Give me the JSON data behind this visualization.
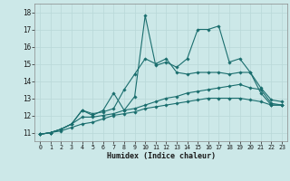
{
  "xlabel": "Humidex (Indice chaleur)",
  "bg_color": "#cce8e8",
  "line_color": "#1a6e6e",
  "grid_color": "#b8d8d8",
  "xlim": [
    -0.5,
    23.5
  ],
  "ylim": [
    10.5,
    18.5
  ],
  "xticks": [
    0,
    1,
    2,
    3,
    4,
    5,
    6,
    7,
    8,
    9,
    10,
    11,
    12,
    13,
    14,
    15,
    16,
    17,
    18,
    19,
    20,
    21,
    22,
    23
  ],
  "yticks": [
    11,
    12,
    13,
    14,
    15,
    16,
    17,
    18
  ],
  "series": [
    {
      "x": [
        0,
        1,
        2,
        3,
        4,
        5,
        6,
        7,
        8,
        9,
        10,
        11,
        12,
        13,
        14,
        15,
        16,
        17,
        18,
        19,
        20,
        21,
        22,
        23
      ],
      "y": [
        10.9,
        11.0,
        11.2,
        11.5,
        12.3,
        12.0,
        12.3,
        13.3,
        12.3,
        13.1,
        17.8,
        14.9,
        15.1,
        14.8,
        15.3,
        17.0,
        17.0,
        17.2,
        15.1,
        15.3,
        14.5,
        13.3,
        12.6,
        12.6
      ]
    },
    {
      "x": [
        0,
        1,
        2,
        3,
        4,
        5,
        6,
        7,
        8,
        9,
        10,
        11,
        12,
        13,
        14,
        15,
        16,
        17,
        18,
        19,
        20,
        21,
        22,
        23
      ],
      "y": [
        10.9,
        11.0,
        11.2,
        11.5,
        12.3,
        12.1,
        12.2,
        12.4,
        13.5,
        14.4,
        15.3,
        15.0,
        15.3,
        14.5,
        14.4,
        14.5,
        14.5,
        14.5,
        14.4,
        14.5,
        14.5,
        13.6,
        12.9,
        12.8
      ]
    },
    {
      "x": [
        0,
        1,
        2,
        3,
        4,
        5,
        6,
        7,
        8,
        9,
        10,
        11,
        12,
        13,
        14,
        15,
        16,
        17,
        18,
        19,
        20,
        21,
        22,
        23
      ],
      "y": [
        10.9,
        11.0,
        11.2,
        11.5,
        11.9,
        11.9,
        12.0,
        12.1,
        12.3,
        12.4,
        12.6,
        12.8,
        13.0,
        13.1,
        13.3,
        13.4,
        13.5,
        13.6,
        13.7,
        13.8,
        13.6,
        13.5,
        12.7,
        12.6
      ]
    },
    {
      "x": [
        0,
        1,
        2,
        3,
        4,
        5,
        6,
        7,
        8,
        9,
        10,
        11,
        12,
        13,
        14,
        15,
        16,
        17,
        18,
        19,
        20,
        21,
        22,
        23
      ],
      "y": [
        10.9,
        11.0,
        11.1,
        11.3,
        11.5,
        11.6,
        11.8,
        12.0,
        12.1,
        12.2,
        12.4,
        12.5,
        12.6,
        12.7,
        12.8,
        12.9,
        13.0,
        13.0,
        13.0,
        13.0,
        12.9,
        12.8,
        12.6,
        12.6
      ]
    }
  ]
}
